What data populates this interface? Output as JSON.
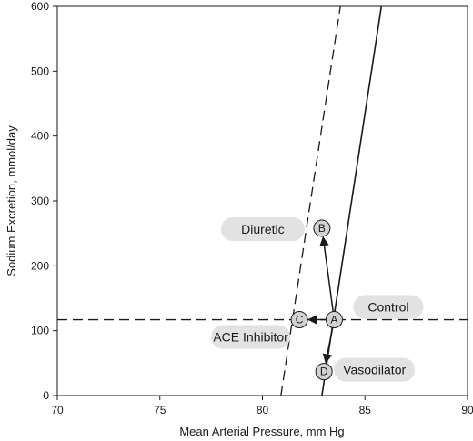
{
  "chart_data": {
    "type": "line",
    "xlabel": "Mean Arterial Pressure, mm Hg",
    "ylabel": "Sodium Excretion, mmol/day",
    "xlim": [
      70,
      90
    ],
    "ylim": [
      0,
      600
    ],
    "xticks": [
      "70",
      "75",
      "80",
      "85",
      "90"
    ],
    "yticks": [
      "0",
      "100",
      "200",
      "300",
      "400",
      "500",
      "600"
    ],
    "grid": false,
    "lines": [
      {
        "style": "solid",
        "x": [
          82.9,
          85.8
        ],
        "y": [
          0,
          600
        ]
      },
      {
        "style": "dashed",
        "x": [
          80.9,
          83.8
        ],
        "y": [
          0,
          600
        ]
      },
      {
        "style": "dashed",
        "x": [
          70,
          90
        ],
        "y": [
          117,
          117
        ]
      }
    ],
    "points": [
      {
        "label": "A",
        "x": 83.5,
        "y": 117
      },
      {
        "label": "B",
        "x": 82.9,
        "y": 258
      },
      {
        "label": "C",
        "x": 81.8,
        "y": 117
      },
      {
        "label": "D",
        "x": 83.0,
        "y": 37
      }
    ],
    "arrows": [
      {
        "from": "A",
        "to": "B"
      },
      {
        "from": "A",
        "to": "C"
      },
      {
        "from": "A",
        "to": "D"
      }
    ],
    "annotations": [
      {
        "text": "Diuretic",
        "target": "B"
      },
      {
        "text": "Control",
        "target": "A"
      },
      {
        "text": "ACE Inhibitor",
        "target": "C"
      },
      {
        "text": "Vasodilator",
        "target": "D"
      }
    ]
  },
  "colors": {
    "pill": "#e2e2e2",
    "point": "#d2d2d2",
    "ink": "#1a1a1a"
  }
}
